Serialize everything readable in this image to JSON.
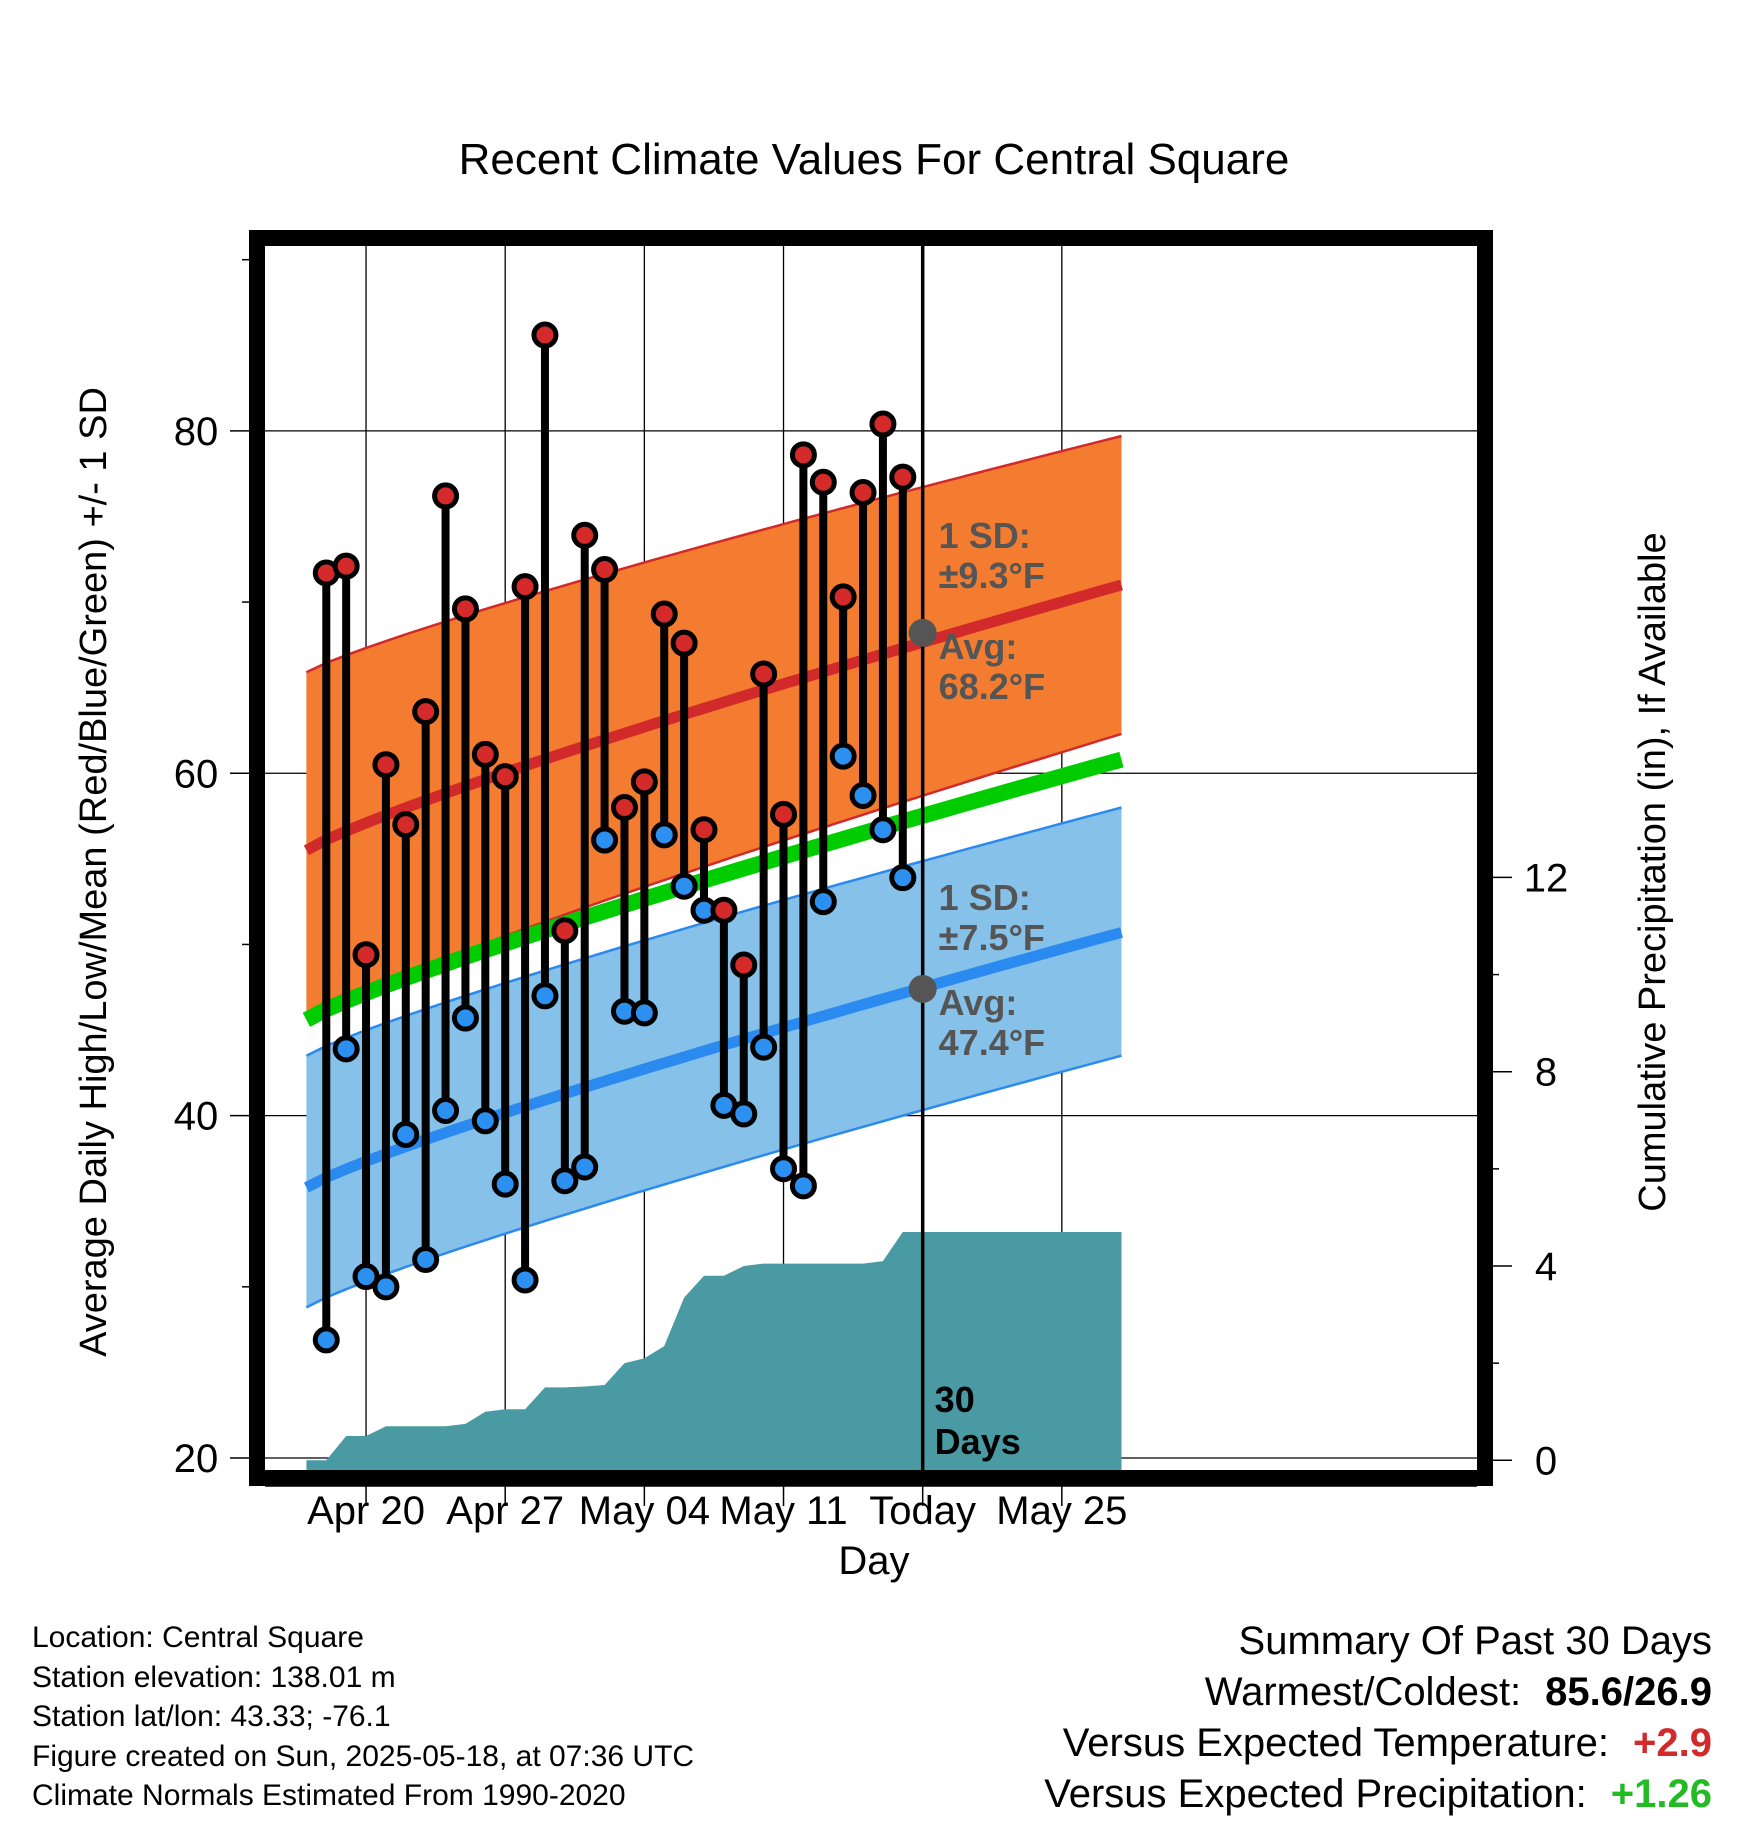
{
  "chart_data": {
    "type": "line",
    "title": "Recent Climate Values For Central Square",
    "xlabel": "Day",
    "ylabel": "Average Daily High/Low/Mean (Red/Blue/Green) +/- 1 SD",
    "y2label": "Cumulative Precipitation (in), If Available",
    "ylim": [
      19.3,
      90.8
    ],
    "y_ticks": [
      20,
      40,
      60,
      80
    ],
    "y2lim": [
      -0.2,
      25
    ],
    "y2_ticks": [
      0,
      4,
      8,
      12
    ],
    "x_range": [
      "Apr 17",
      "May 28"
    ],
    "x_ticks": [
      "Apr 20",
      "Apr 27",
      "May 04",
      "May 11",
      "Today",
      "May 25"
    ],
    "grid": true,
    "days": [
      "Apr 18",
      "Apr 19",
      "Apr 20",
      "Apr 21",
      "Apr 22",
      "Apr 23",
      "Apr 24",
      "Apr 25",
      "Apr 26",
      "Apr 27",
      "Apr 28",
      "Apr 29",
      "Apr 30",
      "May 01",
      "May 02",
      "May 03",
      "May 04",
      "May 05",
      "May 06",
      "May 07",
      "May 08",
      "May 09",
      "May 10",
      "May 11",
      "May 12",
      "May 13",
      "May 14",
      "May 15",
      "May 16",
      "May 17"
    ],
    "highs": [
      71.7,
      72.1,
      49.4,
      60.5,
      57.0,
      63.6,
      76.2,
      69.6,
      61.1,
      59.8,
      70.9,
      85.6,
      50.8,
      73.9,
      71.9,
      58.0,
      59.5,
      69.3,
      67.6,
      56.7,
      52.0,
      48.8,
      65.8,
      57.6,
      78.6,
      77.0,
      70.3,
      76.4,
      80.4,
      77.3
    ],
    "lows": [
      26.9,
      43.9,
      30.6,
      30.0,
      38.9,
      31.6,
      40.3,
      45.7,
      39.7,
      36.0,
      30.4,
      47.0,
      36.2,
      37.0,
      56.1,
      46.1,
      46.0,
      56.4,
      53.4,
      52.0,
      40.6,
      40.1,
      44.0,
      36.9,
      35.9,
      52.5,
      61.0,
      58.7,
      56.7,
      53.9
    ],
    "normals": {
      "dates": [
        "Apr 17",
        "May 28"
      ],
      "avg_high": [
        55.5,
        71.0
      ],
      "high_sd_upper": [
        65.9,
        79.7
      ],
      "high_sd_lower": [
        45.6,
        62.3
      ],
      "avg_low": [
        35.8,
        50.7
      ],
      "low_sd_upper": [
        43.5,
        58.0
      ],
      "low_sd_lower": [
        28.8,
        43.5
      ],
      "avg_mean": [
        45.6,
        60.8
      ]
    },
    "precip_cumulative": [
      {
        "x": "Apr 17",
        "y": 0
      },
      {
        "x": "Apr 18",
        "y": 0
      },
      {
        "x": "Apr 19",
        "y": 0.5
      },
      {
        "x": "Apr 20",
        "y": 0.5
      },
      {
        "x": "Apr 21",
        "y": 0.7
      },
      {
        "x": "Apr 22",
        "y": 0.7
      },
      {
        "x": "Apr 23",
        "y": 0.7
      },
      {
        "x": "Apr 24",
        "y": 0.7
      },
      {
        "x": "Apr 25",
        "y": 0.75
      },
      {
        "x": "Apr 26",
        "y": 1.0
      },
      {
        "x": "Apr 27",
        "y": 1.05
      },
      {
        "x": "Apr 28",
        "y": 1.05
      },
      {
        "x": "Apr 29",
        "y": 1.5
      },
      {
        "x": "Apr 30",
        "y": 1.5
      },
      {
        "x": "May 01",
        "y": 1.52
      },
      {
        "x": "May 02",
        "y": 1.55
      },
      {
        "x": "May 03",
        "y": 2.0
      },
      {
        "x": "May 04",
        "y": 2.1
      },
      {
        "x": "May 05",
        "y": 2.35
      },
      {
        "x": "May 06",
        "y": 3.35
      },
      {
        "x": "May 07",
        "y": 3.8
      },
      {
        "x": "May 08",
        "y": 3.8
      },
      {
        "x": "May 09",
        "y": 4.0
      },
      {
        "x": "May 10",
        "y": 4.05
      },
      {
        "x": "May 11",
        "y": 4.05
      },
      {
        "x": "May 12",
        "y": 4.05
      },
      {
        "x": "May 13",
        "y": 4.05
      },
      {
        "x": "May 14",
        "y": 4.05
      },
      {
        "x": "May 15",
        "y": 4.05
      },
      {
        "x": "May 16",
        "y": 4.1
      },
      {
        "x": "May 17",
        "y": 4.7
      },
      {
        "x": "May 28",
        "y": 4.7
      }
    ],
    "annotations": {
      "high_sd_label": [
        "1 SD:",
        "±9.3°F"
      ],
      "high_avg_label": [
        "Avg:",
        "68.2°F"
      ],
      "low_sd_label": [
        "1 SD:",
        "±7.5°F"
      ],
      "low_avg_label": [
        "Avg:",
        "47.4°F"
      ],
      "today_high_avg": 68.2,
      "today_low_avg": 47.4,
      "days_label": [
        "30",
        "Days"
      ]
    },
    "colors": {
      "high_band": "#f47c30",
      "high_line": "#d22a2a",
      "low_band": "#85c1e8",
      "low_line": "#2b8af0",
      "mean_line": "#00cc00",
      "precip": "#4a9aa4",
      "high_dot": "#d42a2a",
      "low_dot": "#2b90f0",
      "annotation": "#555555"
    }
  },
  "footer": {
    "location": "Location: Central Square",
    "elevation": "Station elevation: 138.01 m",
    "latlon": "Station lat/lon: 43.33; -76.1",
    "created": "Figure created on Sun, 2025-05-18, at 07:36 UTC",
    "normals": "Climate Normals Estimated From 1990-2020"
  },
  "summary": {
    "title": "Summary Of Past 30 Days",
    "warm_cold_label": "Warmest/Coldest:",
    "warm_cold_value": "85.6/26.9",
    "temp_label": "Versus Expected Temperature:",
    "temp_value": "+2.9",
    "temp_color": "#d22a2a",
    "precip_label": "Versus Expected Precipitation:",
    "precip_value": "+1.26",
    "precip_color": "#22bb22"
  }
}
